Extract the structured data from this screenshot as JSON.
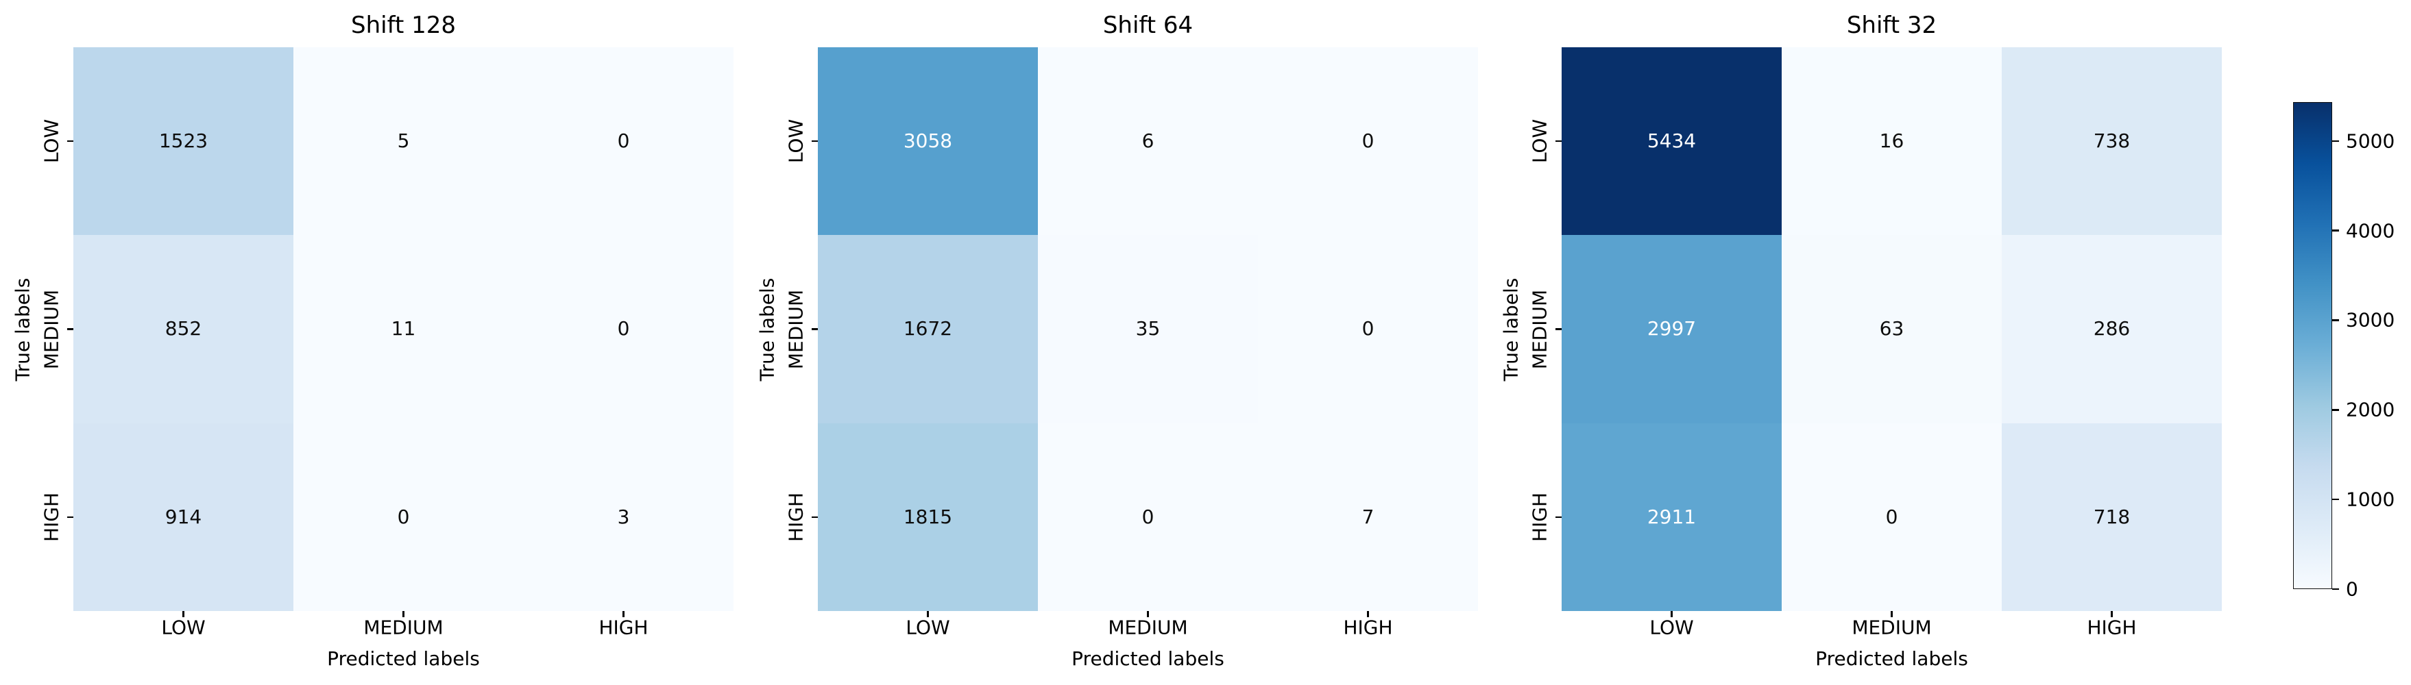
{
  "figure": {
    "background": "#ffffff",
    "text_color": "#000000"
  },
  "chart_data": [
    {
      "type": "heatmap",
      "title": "Shift 128",
      "x_categories": [
        "LOW",
        "MEDIUM",
        "HIGH"
      ],
      "y_categories": [
        "LOW",
        "MEDIUM",
        "HIGH"
      ],
      "xlabel": "Predicted labels",
      "ylabel": "True labels",
      "values": [
        [
          1523,
          5,
          0
        ],
        [
          852,
          11,
          0
        ],
        [
          914,
          0,
          3
        ]
      ],
      "vmin": 0,
      "vmax": 5434,
      "colormap": "Blues",
      "grid": false
    },
    {
      "type": "heatmap",
      "title": "Shift 64",
      "x_categories": [
        "LOW",
        "MEDIUM",
        "HIGH"
      ],
      "y_categories": [
        "LOW",
        "MEDIUM",
        "HIGH"
      ],
      "xlabel": "Predicted labels",
      "ylabel": "True labels",
      "values": [
        [
          3058,
          6,
          0
        ],
        [
          1672,
          35,
          0
        ],
        [
          1815,
          0,
          7
        ]
      ],
      "vmin": 0,
      "vmax": 5434,
      "colormap": "Blues",
      "grid": false
    },
    {
      "type": "heatmap",
      "title": "Shift 32",
      "x_categories": [
        "LOW",
        "MEDIUM",
        "HIGH"
      ],
      "y_categories": [
        "LOW",
        "MEDIUM",
        "HIGH"
      ],
      "xlabel": "Predicted labels",
      "ylabel": "True labels",
      "values": [
        [
          5434,
          16,
          738
        ],
        [
          2997,
          63,
          286
        ],
        [
          2911,
          0,
          718
        ]
      ],
      "vmin": 0,
      "vmax": 5434,
      "colormap": "Blues",
      "grid": false
    }
  ],
  "colorbar": {
    "vmin": 0,
    "vmax": 5434,
    "tick_values": [
      0,
      1000,
      2000,
      3000,
      4000,
      5000
    ],
    "tick_labels": [
      "0",
      "1000",
      "2000",
      "3000",
      "4000",
      "5000"
    ],
    "colormap_stops": [
      {
        "t": 0,
        "color": "#f7fbff"
      },
      {
        "t": 0.125,
        "color": "#deebf7"
      },
      {
        "t": 0.25,
        "color": "#c6dbef"
      },
      {
        "t": 0.375,
        "color": "#9ecae1"
      },
      {
        "t": 0.5,
        "color": "#6baed6"
      },
      {
        "t": 0.625,
        "color": "#4292c6"
      },
      {
        "t": 0.75,
        "color": "#2171b5"
      },
      {
        "t": 0.875,
        "color": "#08519c"
      },
      {
        "t": 1,
        "color": "#08306b"
      }
    ],
    "annotation_light_color": "#ffffff",
    "annotation_dark_color": "#0d0d0d"
  }
}
